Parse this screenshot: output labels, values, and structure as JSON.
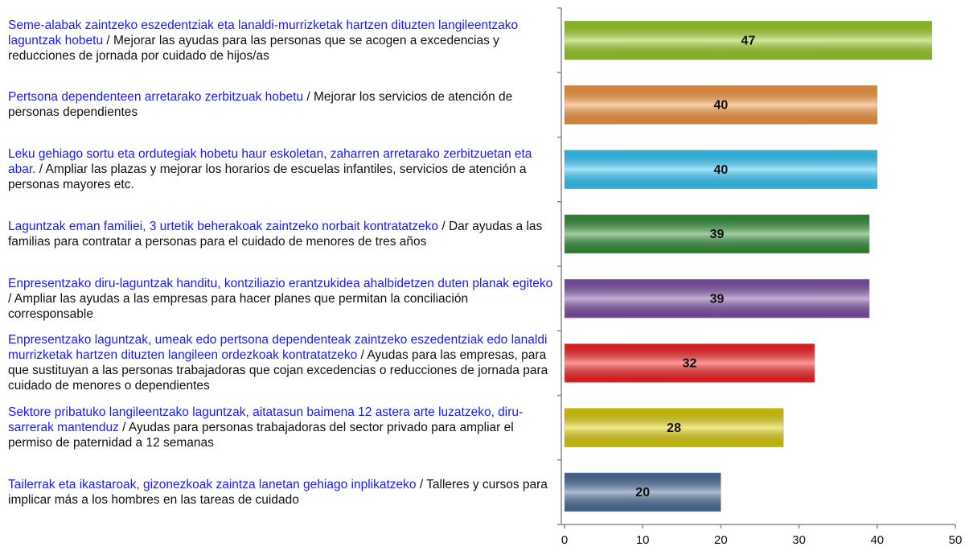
{
  "chart_data": {
    "type": "bar",
    "orientation": "horizontal",
    "categories": [
      [
        "Seme-alabak zaintzeko eszedentziak eta lanaldi-murrizketak hartzen dituzten langileentzako laguntzak hobetu",
        "/ Mejorar las ayudas para las personas que se acogen a excedencias y reducciones de jornada por cuidado de hijos/as"
      ],
      [
        "Pertsona dependenteen arretarako zerbitzuak hobetu",
        "/ Mejorar los servicios de atención de personas dependientes"
      ],
      [
        "Leku gehiago sortu eta ordutegiak hobetu haur eskoletan, zaharren arretarako zerbitzuetan eta abar.",
        "/ Ampliar las plazas y mejorar los horarios de escuelas infantiles, servicios de atención a personas mayores etc."
      ],
      [
        "Laguntzak eman familiei, 3 urtetik beherakoak zaintzeko norbait kontratatzeko",
        "/ Dar ayudas a las familias para contratar a personas para el cuidado de menores de tres años"
      ],
      [
        "Enpresentzako diru-laguntzak handitu, kontziliazio erantzukidea ahalbidetzen duten planak egiteko",
        "/ Ampliar las ayudas a las empresas para hacer planes que permitan la conciliación corresponsable"
      ],
      [
        "Enpresentzako laguntzak, umeak edo pertsona dependenteak zaintzeko eszedentziak edo lanaldi murrizketak hartzen dituzten langileen ordezkoak kontratatzeko",
        "/ Ayudas para las empresas, para que sustituyan a las personas trabajadoras que cojan excedencias o reducciones de jornada para cuidado de menores o dependientes"
      ],
      [
        "Sektore pribatuko langileentzako laguntzak, aitatasun baimena 12 astera arte luzatzeko, diru-sarrerak mantenduz",
        "/ Ayudas para personas trabajadoras del sector privado para ampliar el permiso de paternidad a 12 semanas"
      ],
      [
        "Tailerrak eta ikastaroak, gizonezkoak zaintza lanetan gehiago inplikatzeko",
        "/ Talleres y cursos para implicar más a los hombres en las tareas de cuidado"
      ]
    ],
    "values": [
      47,
      40,
      40,
      39,
      39,
      32,
      28,
      20
    ],
    "colors": [
      "#9acd1e",
      "#f7963a",
      "#2ec8fb",
      "#2f8f34",
      "#7d4ea6",
      "#f81e1e",
      "#dfd000",
      "#4a6c9c"
    ],
    "xlim": [
      0,
      50
    ],
    "xticks": [
      0,
      10,
      20,
      30,
      40,
      50
    ]
  }
}
